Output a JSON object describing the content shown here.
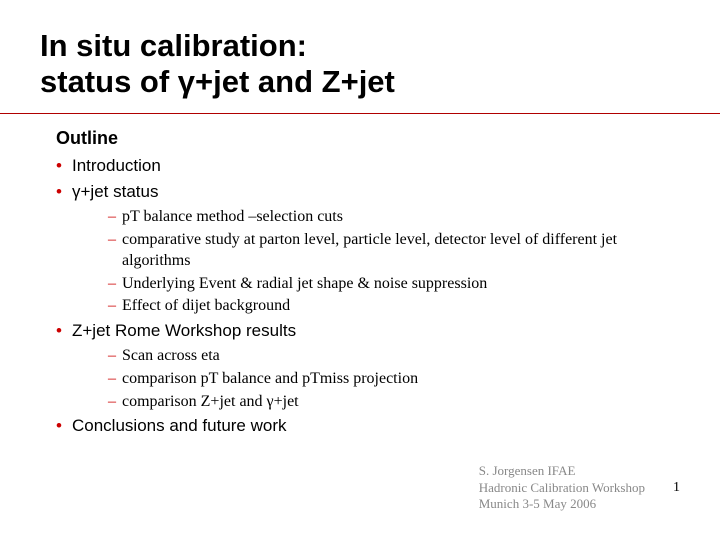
{
  "title": {
    "line1": "In situ calibration:",
    "line2": "status of γ+jet and Z+jet",
    "fontsize": 31,
    "color": "#000000"
  },
  "rule": {
    "color": "#b00000"
  },
  "outline": {
    "heading": "Outline",
    "heading_fontsize": 18,
    "level1_fontsize": 17,
    "level2_fontsize": 16,
    "bullet_color": "#cc0000",
    "dash_color": "#cc0000",
    "text_color": "#000000",
    "items": [
      {
        "label": "Introduction",
        "sub": []
      },
      {
        "label": "γ+jet status",
        "sub": [
          "pT balance method –selection cuts",
          "comparative study at parton level, particle level, detector level of different jet algorithms",
          "Underlying Event & radial jet shape & noise suppression",
          "Effect of dijet background"
        ]
      },
      {
        "label": "Z+jet Rome Workshop results",
        "sub": [
          "Scan across eta",
          "comparison pT balance and pTmiss projection",
          "comparison Z+jet and γ+jet"
        ]
      },
      {
        "label": "Conclusions and future work",
        "sub": []
      }
    ]
  },
  "footer": {
    "lines": [
      "S. Jorgensen IFAE",
      "Hadronic Calibration Workshop",
      "Munich 3-5 May 2006"
    ],
    "color": "#888888",
    "fontsize": 13,
    "page_number": "1",
    "page_number_fontsize": 14
  }
}
